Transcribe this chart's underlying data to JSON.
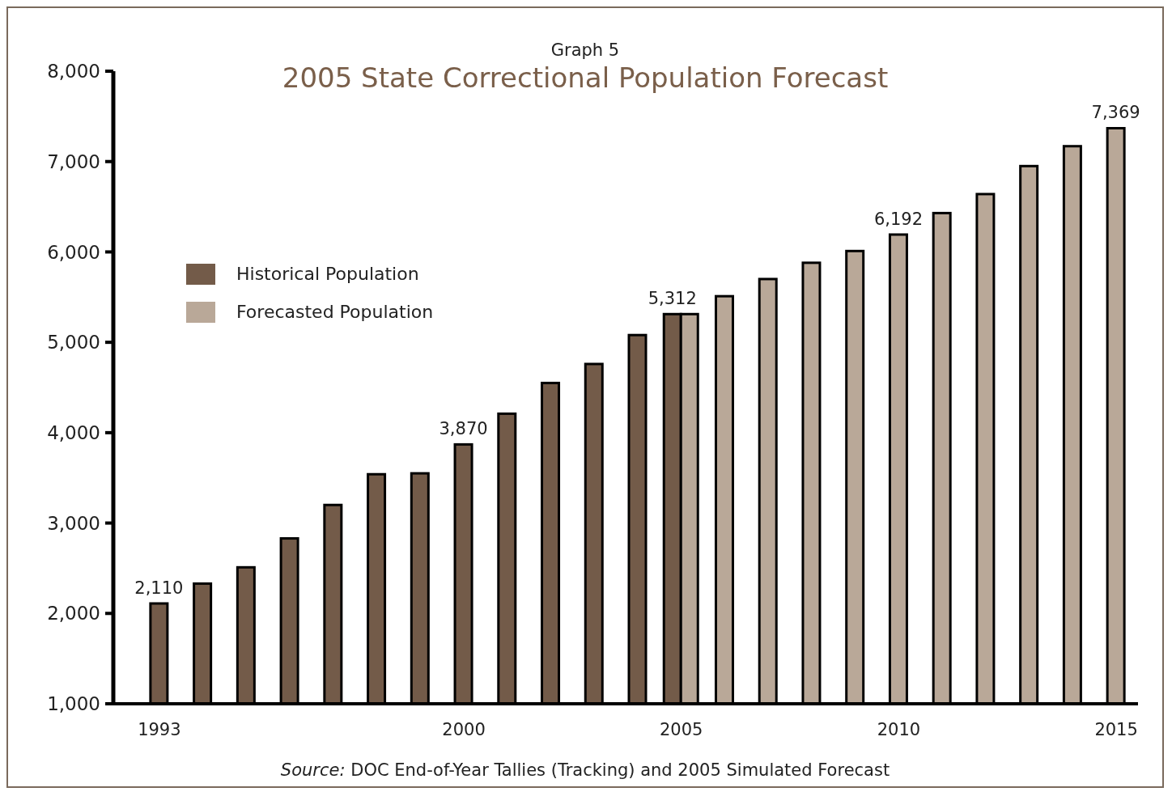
{
  "chart_data": {
    "type": "bar",
    "subtitle": "Graph 5",
    "title": "2005 State Correctional Population Forecast",
    "categories": [
      "1993",
      null,
      null,
      null,
      null,
      null,
      null,
      "2000",
      null,
      null,
      null,
      null,
      "2005",
      null,
      null,
      null,
      null,
      "2010",
      null,
      null,
      null,
      null,
      "2015"
    ],
    "series": [
      {
        "name": "Historical Population",
        "color": "#735b49",
        "values": [
          2110,
          2330,
          2510,
          2830,
          3200,
          3540,
          3550,
          3870,
          4210,
          4550,
          4760,
          5080,
          5312,
          null,
          null,
          null,
          null,
          null,
          null,
          null,
          null,
          null,
          null
        ],
        "value_labels": [
          "2,110",
          null,
          null,
          null,
          null,
          null,
          null,
          "3,870",
          null,
          null,
          null,
          null,
          "5,312",
          null,
          null,
          null,
          null,
          null,
          null,
          null,
          null,
          null,
          null
        ]
      },
      {
        "name": "Forecasted Population",
        "color": "#b9a898",
        "values": [
          null,
          null,
          null,
          null,
          null,
          null,
          null,
          null,
          null,
          null,
          null,
          null,
          5312,
          5510,
          5700,
          5880,
          6010,
          6192,
          6430,
          6640,
          6950,
          7170,
          7369
        ],
        "value_labels": [
          null,
          null,
          null,
          null,
          null,
          null,
          null,
          null,
          null,
          null,
          null,
          null,
          null,
          null,
          null,
          null,
          null,
          "6,192",
          null,
          null,
          null,
          null,
          "7,369"
        ]
      }
    ],
    "ylim": [
      1000,
      8000
    ],
    "yticks": [
      {
        "value": 1000,
        "label": "1,000"
      },
      {
        "value": 2000,
        "label": "2,000"
      },
      {
        "value": 3000,
        "label": "3,000"
      },
      {
        "value": 4000,
        "label": "4,000"
      },
      {
        "value": 5000,
        "label": "5,000"
      },
      {
        "value": 6000,
        "label": "6,000"
      },
      {
        "value": 7000,
        "label": "7,000"
      },
      {
        "value": 8000,
        "label": "8,000"
      }
    ],
    "legend": "top left",
    "grid": false,
    "annotations": [
      "Source: DOC End-of-Year Tallies (Tracking) and 2005 Simulated Forecast"
    ]
  }
}
